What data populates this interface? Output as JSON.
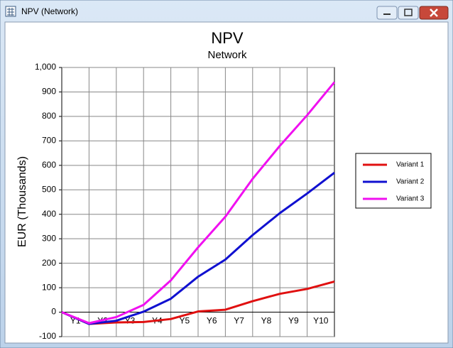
{
  "window": {
    "title": "NPV (Network)"
  },
  "chart_data": {
    "type": "line",
    "title": "NPV",
    "subtitle": "Network",
    "y_label": "EUR (Thousands)",
    "categories": [
      null,
      "Y1",
      "Y2",
      "Y3",
      "Y4",
      "Y5",
      "Y6",
      "Y7",
      "Y8",
      "Y9",
      "Y10"
    ],
    "series": [
      {
        "name": "Variant 1",
        "color": "#e01010",
        "values": [
          0,
          -48,
          -42,
          -40,
          -28,
          3,
          10,
          45,
          75,
          95,
          125
        ]
      },
      {
        "name": "Variant 2",
        "color": "#1010d0",
        "values": [
          0,
          -48,
          -35,
          2,
          55,
          145,
          215,
          315,
          405,
          485,
          570
        ]
      },
      {
        "name": "Variant 3",
        "color": "#f010f0",
        "values": [
          0,
          -45,
          -20,
          30,
          130,
          265,
          390,
          545,
          680,
          805,
          940
        ]
      }
    ],
    "ylim": [
      -100,
      1000
    ],
    "yticks": [
      -100,
      0,
      100,
      200,
      300,
      400,
      500,
      600,
      700,
      800,
      900,
      {
        "value": 1000,
        "label": "1,000"
      }
    ],
    "grid": true,
    "legend": "right"
  }
}
